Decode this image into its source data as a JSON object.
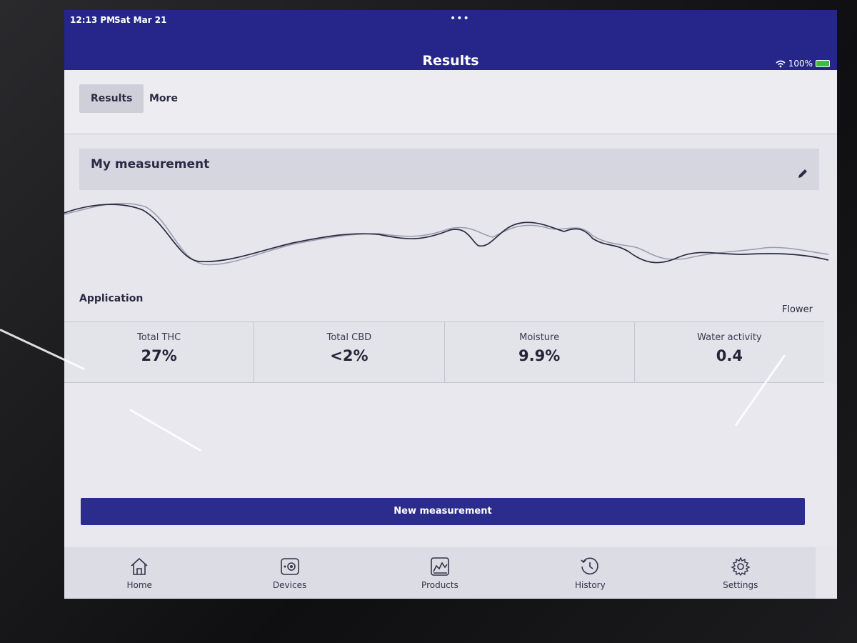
{
  "status": {
    "time": "12:13 PM",
    "date": "Sat Mar 21",
    "battery": "100%"
  },
  "header": {
    "title": "Results"
  },
  "tabs": [
    {
      "label": "Results",
      "active": true
    },
    {
      "label": "More",
      "active": false
    }
  ],
  "card": {
    "title": "My measurement"
  },
  "application": {
    "label": "Application",
    "value": "Flower"
  },
  "metrics": [
    {
      "label": "Total THC",
      "value": "27%"
    },
    {
      "label": "Total CBD",
      "value": "<2%"
    },
    {
      "label": "Moisture",
      "value": "9.9%"
    },
    {
      "label": "Water activity",
      "value": "0.4"
    }
  ],
  "actions": {
    "new_measurement": "New measurement"
  },
  "tabbar": [
    {
      "label": "Home",
      "icon": "home-icon"
    },
    {
      "label": "Devices",
      "icon": "devices-icon"
    },
    {
      "label": "Products",
      "icon": "products-icon"
    },
    {
      "label": "History",
      "icon": "history-icon"
    },
    {
      "label": "Settings",
      "icon": "gear-icon"
    }
  ],
  "colors": {
    "brand": "#25258a",
    "button": "#2c2c8c"
  }
}
